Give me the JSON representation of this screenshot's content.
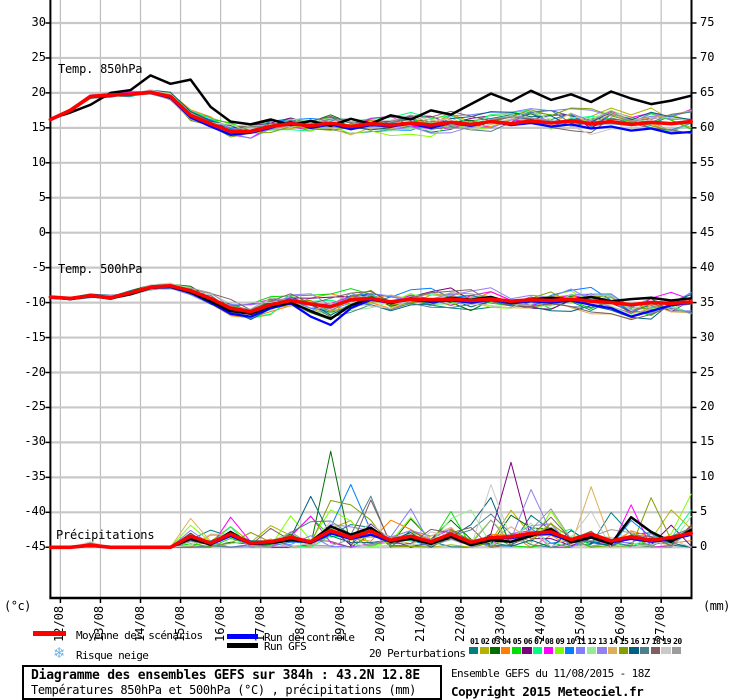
{
  "panel_labels": {
    "t850": "Temp. 850hPa",
    "t500": "Temp. 500hPa",
    "precip": "Précipitations"
  },
  "axes": {
    "left_unit": "(°c)",
    "right_unit": "(mm)",
    "left_ticks": [
      30,
      25,
      20,
      15,
      10,
      5,
      0,
      -5,
      -10,
      -15,
      -20,
      -25,
      -30,
      -35,
      -40,
      -45
    ],
    "right_ticks": [
      75,
      70,
      65,
      60,
      55,
      50,
      45,
      40,
      35,
      30,
      25,
      20,
      15,
      10,
      5,
      0
    ],
    "dates": [
      "12/08",
      "13/08",
      "14/08",
      "15/08",
      "16/08",
      "17/08",
      "18/08",
      "19/08",
      "20/08",
      "21/08",
      "22/08",
      "23/08",
      "24/08",
      "25/08",
      "26/08",
      "27/08"
    ]
  },
  "legend": {
    "mean": {
      "label": "Moyenne des scénarios",
      "color": "#ff0000"
    },
    "control": {
      "label": "Run de contrôle",
      "color": "#0000ff"
    },
    "gfs": {
      "label": "Run GFS",
      "color": "#000000"
    },
    "snow": {
      "label": "Risque neige",
      "icon": "snowflake",
      "icon_color": "#6fb7e9"
    },
    "perturbations": {
      "label": "20 Perturbations",
      "members": [
        {
          "id": "01",
          "color": "#007f7f"
        },
        {
          "id": "02",
          "color": "#b2b200"
        },
        {
          "id": "03",
          "color": "#006e00"
        },
        {
          "id": "04",
          "color": "#ff7f00"
        },
        {
          "id": "05",
          "color": "#00e000"
        },
        {
          "id": "06",
          "color": "#7c007c"
        },
        {
          "id": "07",
          "color": "#00ff7f"
        },
        {
          "id": "08",
          "color": "#ff00ff"
        },
        {
          "id": "09",
          "color": "#7fff00"
        },
        {
          "id": "10",
          "color": "#0080ff"
        },
        {
          "id": "11",
          "color": "#7f7fff"
        },
        {
          "id": "12",
          "color": "#90ee90"
        },
        {
          "id": "13",
          "color": "#9180f0"
        },
        {
          "id": "14",
          "color": "#ddae55"
        },
        {
          "id": "15",
          "color": "#7fa000"
        },
        {
          "id": "16",
          "color": "#00607f"
        },
        {
          "id": "17",
          "color": "#4f7f8f"
        },
        {
          "id": "18",
          "color": "#7f5f5f"
        },
        {
          "id": "19",
          "color": "#c9c9c9"
        },
        {
          "id": "20",
          "color": "#9c9c9c"
        }
      ]
    }
  },
  "footer": {
    "title": "Diagramme des ensembles GEFS sur 384h : 43.2N 12.8E",
    "subtitle": "Températures 850hPa et 500hPa (°C) , précipitations (mm)",
    "run_info": "Ensemble GEFS du 11/08/2015 - 18Z",
    "copyright": "Copyright 2015 Meteociel.fr"
  },
  "chart_data": {
    "type": "line",
    "x": {
      "start": "11/08 18Z",
      "step_hours": 12,
      "n_points": 33,
      "day_labels": [
        "12/08",
        "13/08",
        "14/08",
        "15/08",
        "16/08",
        "17/08",
        "18/08",
        "19/08",
        "20/08",
        "21/08",
        "22/08",
        "23/08",
        "24/08",
        "25/08",
        "26/08",
        "27/08"
      ]
    },
    "axis": {
      "left_label": "(°c)",
      "left_visible_range": [
        -45,
        30
      ],
      "right_label": "(mm)",
      "right_visible_range": [
        0,
        75
      ],
      "grid": true,
      "grid_step": 5
    },
    "t850": {
      "unit": "°C",
      "mean": [
        16.2,
        17.5,
        19.5,
        19.7,
        19.8,
        20.1,
        19.5,
        16.8,
        15.6,
        14.5,
        14.5,
        15.2,
        15.6,
        15.3,
        15.7,
        15.2,
        15.6,
        15.4,
        15.7,
        15.4,
        15.8,
        15.5,
        15.9,
        15.6,
        16.0,
        15.7,
        16.0,
        15.6,
        15.9,
        15.5,
        15.8,
        15.6,
        15.9
      ],
      "control": [
        16.1,
        17.4,
        19.4,
        19.6,
        19.8,
        20.0,
        19.3,
        16.5,
        15.2,
        14.0,
        14.3,
        15.0,
        15.8,
        15.0,
        15.5,
        14.8,
        15.4,
        15.2,
        15.6,
        15.0,
        15.7,
        15.3,
        15.9,
        15.4,
        15.7,
        15.2,
        15.5,
        14.9,
        15.2,
        14.6,
        14.9,
        14.2,
        14.4
      ],
      "gfs": [
        16.3,
        17.2,
        18.3,
        20.0,
        20.4,
        22.5,
        21.3,
        21.9,
        18.0,
        15.9,
        15.5,
        16.2,
        15.4,
        16.0,
        15.3,
        16.3,
        15.6,
        16.8,
        16.2,
        17.5,
        16.9,
        18.4,
        19.9,
        18.8,
        20.3,
        19.0,
        19.8,
        18.7,
        20.2,
        19.2,
        18.4,
        18.9,
        19.6
      ],
      "spread": [
        0.15,
        0.3,
        0.4,
        0.4,
        0.5,
        0.5,
        0.8,
        1.0,
        1.2,
        1.3,
        1.2,
        1.1,
        1.0,
        1.2,
        1.3,
        1.4,
        1.3,
        1.4,
        1.5,
        1.5,
        1.6,
        1.5,
        1.7,
        1.6,
        1.8,
        1.7,
        1.9,
        1.8,
        2.0,
        1.9,
        2.0,
        2.0,
        2.0
      ]
    },
    "t500": {
      "unit": "°C",
      "mean": [
        -9.2,
        -9.4,
        -9.0,
        -9.3,
        -8.6,
        -7.8,
        -7.6,
        -8.3,
        -9.4,
        -10.8,
        -11.3,
        -10.3,
        -9.7,
        -10.2,
        -10.6,
        -9.6,
        -9.4,
        -9.9,
        -9.5,
        -9.6,
        -9.5,
        -9.7,
        -9.5,
        -9.8,
        -9.6,
        -9.7,
        -9.5,
        -9.8,
        -10.0,
        -10.3,
        -10.0,
        -10.1,
        -9.9
      ],
      "control": [
        -9.3,
        -9.5,
        -9.0,
        -9.4,
        -8.7,
        -7.9,
        -7.8,
        -8.6,
        -10.0,
        -11.6,
        -12.0,
        -10.8,
        -10.1,
        -12.0,
        -13.2,
        -10.8,
        -9.6,
        -10.0,
        -9.6,
        -9.9,
        -9.7,
        -10.0,
        -9.6,
        -10.1,
        -9.8,
        -10.0,
        -9.7,
        -10.3,
        -10.8,
        -12.0,
        -11.2,
        -10.4,
        -10.0
      ],
      "gfs": [
        -9.2,
        -9.5,
        -9.1,
        -9.4,
        -8.8,
        -7.9,
        -7.7,
        -8.5,
        -9.8,
        -11.2,
        -11.6,
        -10.5,
        -10.0,
        -11.2,
        -12.3,
        -10.4,
        -9.3,
        -10.1,
        -9.4,
        -9.8,
        -9.3,
        -9.6,
        -9.2,
        -10.0,
        -9.5,
        -9.3,
        -9.6,
        -9.2,
        -9.8,
        -9.5,
        -9.3,
        -9.7,
        -9.4
      ],
      "spread": [
        0.2,
        0.25,
        0.3,
        0.35,
        0.4,
        0.5,
        0.6,
        0.8,
        1.0,
        1.3,
        1.5,
        1.3,
        1.3,
        1.8,
        2.0,
        1.6,
        1.4,
        1.5,
        1.5,
        1.6,
        1.6,
        1.7,
        1.6,
        1.7,
        1.7,
        1.8,
        1.8,
        1.9,
        2.0,
        2.2,
        2.1,
        2.2,
        2.2
      ]
    },
    "precip_mm": {
      "unit": "mm",
      "mean": [
        0,
        0,
        0.3,
        0,
        0,
        0,
        0,
        1.6,
        0.6,
        1.9,
        0.6,
        0.8,
        1.4,
        0.8,
        2.4,
        1.4,
        2.3,
        1.0,
        1.6,
        0.8,
        1.9,
        0.7,
        1.4,
        1.5,
        2.0,
        2.2,
        1.1,
        1.9,
        0.9,
        1.5,
        1.0,
        1.4,
        2.0
      ],
      "control": [
        0,
        0,
        0.4,
        0,
        0,
        0,
        0,
        1.4,
        0.4,
        1.6,
        0.5,
        0.6,
        1.2,
        0.6,
        2.0,
        1.2,
        1.8,
        0.8,
        1.3,
        0.6,
        1.6,
        0.5,
        1.2,
        1.3,
        1.8,
        1.9,
        0.8,
        1.6,
        0.7,
        1.2,
        0.8,
        1.1,
        1.8
      ],
      "gfs": [
        0,
        0,
        0.2,
        0,
        0,
        0,
        0,
        1.2,
        0.4,
        2.2,
        0.5,
        0.6,
        1.0,
        0.8,
        3.0,
        1.8,
        2.8,
        0.8,
        1.2,
        0.5,
        1.5,
        0.3,
        1.0,
        0.8,
        1.6,
        2.6,
        0.7,
        1.4,
        0.5,
        4.3,
        2.2,
        0.8,
        2.5
      ],
      "max_envelope": [
        0,
        0,
        0.8,
        0,
        0,
        0,
        0.2,
        5,
        2.5,
        5,
        2,
        3,
        4,
        8,
        12,
        8,
        7.5,
        4,
        6,
        3,
        5,
        5.5,
        10.5,
        13.5,
        8,
        5.5,
        3,
        9,
        5,
        6,
        8,
        5,
        7
      ]
    }
  }
}
